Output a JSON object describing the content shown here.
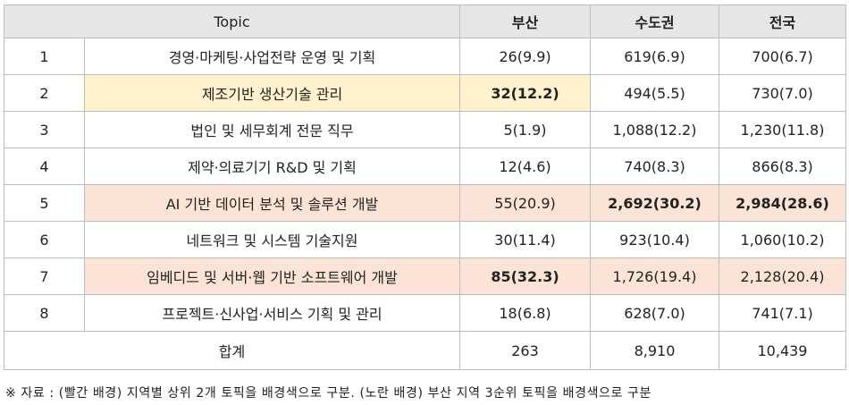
{
  "headers": {
    "topic": "Topic",
    "busan": "부산",
    "capital": "수도권",
    "national": "전국"
  },
  "rows": [
    {
      "no": "1",
      "topic": "경영·마케팅·사업전략 운영 및 기획",
      "busan": "26(9.9)",
      "capital": "619(6.9)",
      "national": "700(6.7)"
    },
    {
      "no": "2",
      "topic": "제조기반 생산기술 관리",
      "busan": "32(12.2)",
      "capital": "494(5.5)",
      "national": "730(7.0)"
    },
    {
      "no": "3",
      "topic": "법인 및 세무회계 전문 직무",
      "busan": "5(1.9)",
      "capital": "1,088(12.2)",
      "national": "1,230(11.8)"
    },
    {
      "no": "4",
      "topic": "제약·의료기기 R&D 및 기획",
      "busan": "12(4.6)",
      "capital": "740(8.3)",
      "national": "866(8.3)"
    },
    {
      "no": "5",
      "topic": "AI 기반 데이터 분석 및 솔루션 개발",
      "busan": "55(20.9)",
      "capital": "2,692(30.2)",
      "national": "2,984(28.6)"
    },
    {
      "no": "6",
      "topic": "네트워크 및 시스템 기술지원",
      "busan": "30(11.4)",
      "capital": "923(10.4)",
      "national": "1,060(10.2)"
    },
    {
      "no": "7",
      "topic": "임베디드 및 서버·웹 기반 소프트웨어 개발",
      "busan": "85(32.3)",
      "capital": "1,726(19.4)",
      "national": "2,128(20.4)"
    },
    {
      "no": "8",
      "topic": "프로젝트·신사업·서비스 기획 및 관리",
      "busan": "18(6.8)",
      "capital": "628(7.0)",
      "national": "741(7.1)"
    }
  ],
  "total": {
    "label": "합계",
    "busan": "263",
    "capital": "8,910",
    "national": "10,439"
  },
  "note": "※ 자료 : (빨간 배경) 지역별 상위 2개 토픽을 배경색으로 구분. (노란 배경) 부산 지역 3순위 토픽을 배경색으로 구분",
  "colors": {
    "header_bg": "#e7e6e6",
    "red_highlight": "#fbe4d5",
    "yellow_highlight": "#fff2cc",
    "border": "#bdbdbd"
  }
}
